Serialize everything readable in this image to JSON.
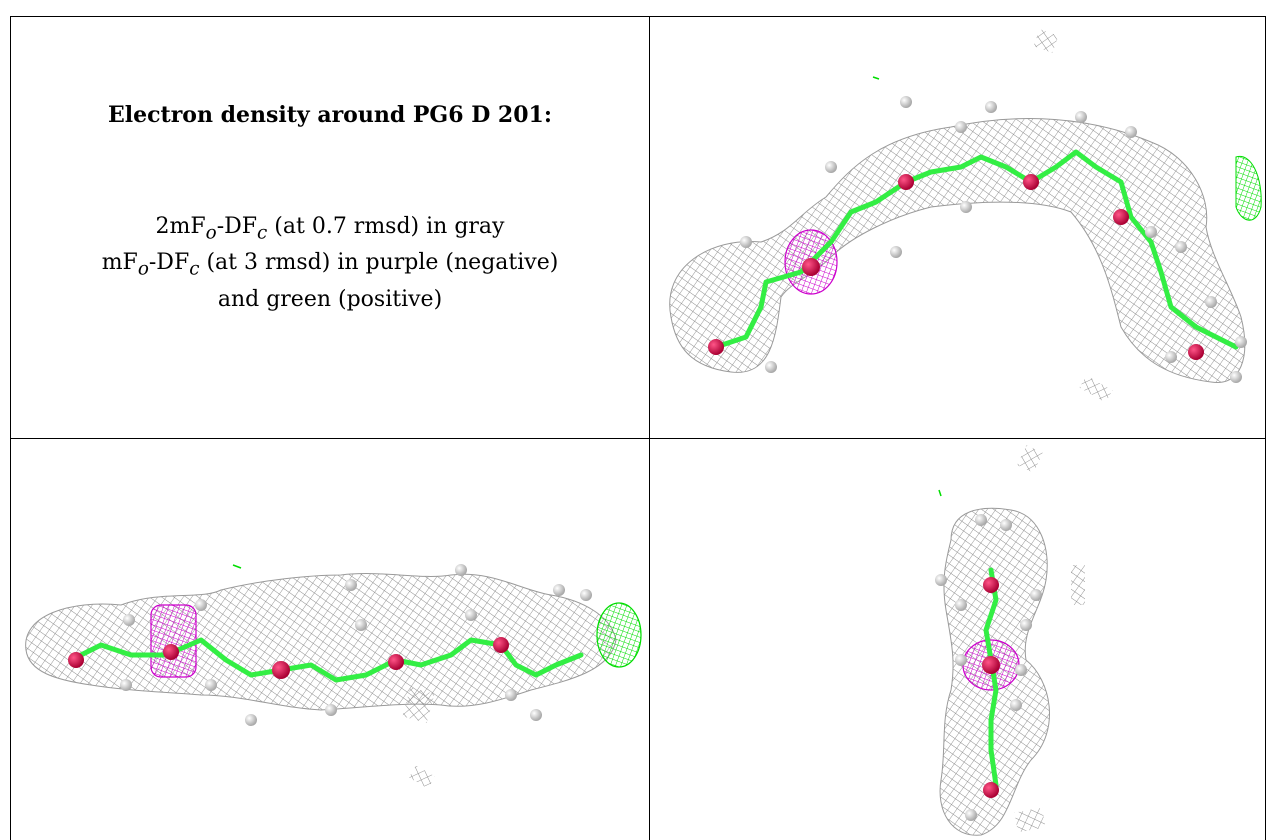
{
  "caption": {
    "title": "Electron density around PG6 D 201:",
    "line1": {
      "prefix": "2mF",
      "o": "o",
      "mid": "-DF",
      "c": "c",
      "suffix": " (at 0.7 rmsd) in gray"
    },
    "line2": {
      "prefix": "mF",
      "o": "o",
      "mid": "-DF",
      "c": "c",
      "suffix": " (at 3 rmsd) in purple (negative)"
    },
    "line3": "and green (positive)"
  },
  "colors": {
    "mesh_gray": "#8c8c8c",
    "negative_purple": "#cc00cc",
    "positive_green": "#00dd00",
    "carbon_green": "#33ee44",
    "oxygen_red": "#dd1155",
    "hydrogen_white": "#dddddd"
  },
  "panels": [
    {
      "name": "view-top-right"
    },
    {
      "name": "view-bottom-left"
    },
    {
      "name": "view-bottom-right"
    }
  ]
}
